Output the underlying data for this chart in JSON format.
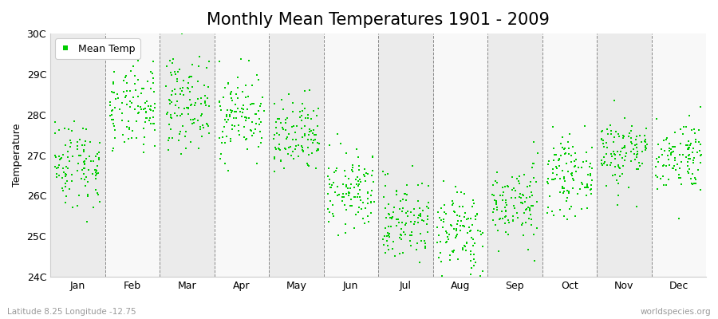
{
  "title": "Monthly Mean Temperatures 1901 - 2009",
  "ylabel": "Temperature",
  "subtitle": "Latitude 8.25 Longitude -12.75",
  "credit": "worldspecies.org",
  "ylim": [
    24,
    30
  ],
  "yticks": [
    24,
    25,
    26,
    27,
    28,
    29,
    30
  ],
  "ytick_labels": [
    "24C",
    "25C",
    "26C",
    "27C",
    "28C",
    "29C",
    "30C"
  ],
  "months": [
    "Jan",
    "Feb",
    "Mar",
    "Apr",
    "May",
    "Jun",
    "Jul",
    "Aug",
    "Sep",
    "Oct",
    "Nov",
    "Dec"
  ],
  "month_means": [
    26.8,
    28.1,
    28.3,
    28.0,
    27.4,
    26.1,
    25.4,
    25.1,
    25.8,
    26.5,
    27.1,
    27.0
  ],
  "month_stds": [
    0.55,
    0.52,
    0.55,
    0.52,
    0.48,
    0.48,
    0.52,
    0.55,
    0.48,
    0.45,
    0.45,
    0.45
  ],
  "n_years": 109,
  "seed": 42,
  "dot_color": "#00cc00",
  "dot_size": 3,
  "band_colors": [
    "#ebebeb",
    "#f8f8f8"
  ],
  "grid_color": "#888888",
  "title_fontsize": 15,
  "label_fontsize": 9,
  "tick_fontsize": 9,
  "fig_bg": "#ffffff"
}
